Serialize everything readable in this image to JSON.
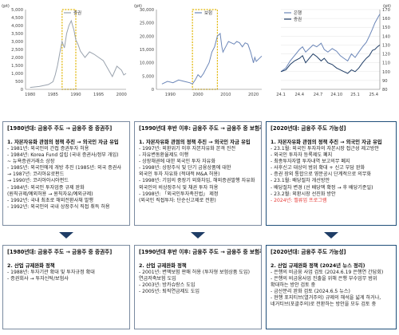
{
  "colors": {
    "series1": "#9aa3ae",
    "series_bank": "#6b86b8",
    "series_stock": "#1f3d66",
    "highlight": "#e0b400",
    "red": "#e53935"
  },
  "chart_data": [
    {
      "type": "line",
      "unit": "(pt)",
      "legend": [
        "증권"
      ],
      "x_ticks": [
        "1980",
        "1985",
        "1990",
        "1995",
        "2000"
      ],
      "y_ticks": [
        "0",
        "500",
        "1,000",
        "1,500",
        "2,000",
        "2,500",
        "3,000",
        "3,500",
        "4,000",
        "4,500",
        "5,000"
      ],
      "xlim": [
        1979,
        2001
      ],
      "ylim": [
        0,
        5000
      ],
      "highlight_x": [
        1987,
        1990
      ],
      "series": [
        {
          "values": [
            [
              1980,
              120
            ],
            [
              1982,
              180
            ],
            [
              1984,
              300
            ],
            [
              1985,
              480
            ],
            [
              1985.5,
              900
            ],
            [
              1986,
              1500
            ],
            [
              1986.5,
              2300
            ],
            [
              1987,
              3000
            ],
            [
              1987.5,
              2600
            ],
            [
              1988,
              3500
            ],
            [
              1988.5,
              4000
            ],
            [
              1989,
              4300
            ],
            [
              1989.3,
              4000
            ],
            [
              1989.6,
              3700
            ],
            [
              1990,
              3100
            ],
            [
              1990.5,
              2800
            ],
            [
              1991,
              2400
            ],
            [
              1992,
              2000
            ],
            [
              1993,
              2350
            ],
            [
              1994,
              2200
            ],
            [
              1995,
              2000
            ],
            [
              1996,
              1800
            ],
            [
              1997,
              1300
            ],
            [
              1998,
              800
            ],
            [
              1999,
              1450
            ],
            [
              2000,
              1200
            ],
            [
              2000.5,
              900
            ],
            [
              2001,
              1000
            ]
          ]
        }
      ]
    },
    {
      "type": "line",
      "unit": "(pt)",
      "legend": [
        "보험"
      ],
      "x_ticks": [
        "1990",
        "2000",
        "2010",
        "2020"
      ],
      "y_ticks": [
        "0",
        "5,000",
        "10,000",
        "15,000",
        "20,000",
        "25,000",
        "30,000"
      ],
      "xlim": [
        1985,
        2023
      ],
      "ylim": [
        0,
        30000
      ],
      "highlight_x": [
        1998,
        2007
      ],
      "series": [
        {
          "values": [
            [
              1987,
              2000
            ],
            [
              1989,
              3000
            ],
            [
              1991,
              2500
            ],
            [
              1993,
              3500
            ],
            [
              1995,
              3000
            ],
            [
              1997,
              2500
            ],
            [
              1998,
              2000
            ],
            [
              1999,
              3500
            ],
            [
              2000,
              5500
            ],
            [
              2001,
              4500
            ],
            [
              2002,
              6000
            ],
            [
              2003,
              8000
            ],
            [
              2004,
              10000
            ],
            [
              2005,
              14000
            ],
            [
              2006,
              16000
            ],
            [
              2007,
              20000
            ],
            [
              2008,
              21000
            ],
            [
              2008.6,
              16000
            ],
            [
              2009,
              14000
            ],
            [
              2010,
              16000
            ],
            [
              2011,
              18000
            ],
            [
              2012,
              17500
            ],
            [
              2013,
              17000
            ],
            [
              2014,
              18000
            ],
            [
              2015,
              17500
            ],
            [
              2016,
              16000
            ],
            [
              2017,
              17500
            ],
            [
              2018,
              17000
            ],
            [
              2019,
              14000
            ],
            [
              2020,
              10000
            ],
            [
              2020.5,
              12000
            ],
            [
              2021,
              10500
            ],
            [
              2022,
              11500
            ],
            [
              2023,
              12500
            ]
          ]
        }
      ]
    },
    {
      "type": "line",
      "unit": "(pt)",
      "legend": [
        "은행",
        "증권"
      ],
      "x_ticks": [
        "24.1",
        "24.4",
        "24.7",
        "24.10",
        "25.1",
        "25.4"
      ],
      "y_ticks": [
        "80",
        "90",
        "100",
        "110",
        "120",
        "130",
        "140",
        "150",
        "160",
        "170"
      ],
      "xlim": [
        0,
        16
      ],
      "ylim": [
        80,
        170
      ],
      "series": [
        {
          "name": "은행",
          "values": [
            [
              0,
              100
            ],
            [
              0.8,
              104
            ],
            [
              1.5,
              112
            ],
            [
              2.2,
              118
            ],
            [
              3,
              125
            ],
            [
              3.5,
              128
            ],
            [
              4,
              122
            ],
            [
              4.6,
              126
            ],
            [
              5.2,
              130
            ],
            [
              5.8,
              128
            ],
            [
              6.5,
              132
            ],
            [
              7,
              125
            ],
            [
              7.6,
              122
            ],
            [
              8.3,
              126
            ],
            [
              9,
              123
            ],
            [
              9.6,
              118
            ],
            [
              10.2,
              115
            ],
            [
              10.8,
              112
            ],
            [
              11.4,
              120
            ],
            [
              12,
              116
            ],
            [
              12.6,
              122
            ],
            [
              13.2,
              128
            ],
            [
              13.8,
              133
            ],
            [
              14.3,
              140
            ],
            [
              14.8,
              148
            ],
            [
              15.2,
              155
            ],
            [
              15.6,
              160
            ],
            [
              16,
              165
            ]
          ]
        },
        {
          "name": "증권",
          "values": [
            [
              0,
              100
            ],
            [
              0.8,
              102
            ],
            [
              1.5,
              108
            ],
            [
              2.2,
              112
            ],
            [
              3,
              115
            ],
            [
              3.5,
              118
            ],
            [
              4,
              110
            ],
            [
              4.6,
              115
            ],
            [
              5.2,
              120
            ],
            [
              5.8,
              117
            ],
            [
              6.5,
              112
            ],
            [
              7,
              115
            ],
            [
              7.6,
              110
            ],
            [
              8.3,
              108
            ],
            [
              9,
              104
            ],
            [
              9.6,
              102
            ],
            [
              10.2,
              100
            ],
            [
              10.8,
              98
            ],
            [
              11.4,
              102
            ],
            [
              12,
              100
            ],
            [
              12.6,
              104
            ],
            [
              13.2,
              110
            ],
            [
              13.8,
              115
            ],
            [
              14.3,
              118
            ],
            [
              14.8,
              124
            ],
            [
              15.2,
              125
            ],
            [
              15.6,
              128
            ],
            [
              16,
              130
            ]
          ]
        }
      ]
    }
  ],
  "columns": [
    {
      "box1": {
        "title": "[1980년대: 금융주 주도 → 금융주 중 증권주]",
        "subtitle": "1. 자본자유화 관점의 정책 추진 → 외국인 자금 유입",
        "lines": [
          "- 1981년: 외국인의 간접 증권투자 허용",
          "- 1984년: Korea Fund 설립 (국내 증권사/정부 개입)",
          "   ~ 뉴욕증권거래소 상장",
          "- 1985년: 외국인에게 개방 추진 (1985년: 외국 증권사",
          "   → 1987년: 코리아유로펀드",
          "   → 1990년: 코리아아시아펀드",
          "- 1984년: 외국인 투자업종 규제 완화",
          "   (원칙규제/예외허용 → 원칙자유/예외규제)",
          "- 1992년: 국내 최초로 해외전환사채 발행",
          "- 1992년: 외국인의 국내 상장주식 직접 취득 허용"
        ],
        "hi_lines": [
          3
        ]
      },
      "box2": {
        "title": "[1980년대: 금융주 주도 → 금융주 중 증권주]",
        "subtitle": "2. 산업 규제완화 정책",
        "lines": [
          "- 1988년: 투자기관 확대 및 투자규정 확대",
          "   - 증권회사 → 투자신탁/보험사"
        ]
      }
    },
    {
      "box1": {
        "title": "[1990년대 후반 이후: 금융주 주도 → 금융주 중 보험주]",
        "subtitle": "1. 자본자유화 관점의 정책 추진 → 외국인 자금 유입",
        "lines": [
          "- 1997년: 외환위기 이후 자본자유화 본격 진전",
          "   - 자유변동환율제도 이행",
          "   - 상장채권에 대한 외국인 투자 자유화",
          "- 1998년: 상장주식 및 단기 금융상품에 대한",
          "   외국인 투자 자유화 (적대적 M&A 허용)",
          "- 1998년: 기업의 중장기 외화차입, 해외증권발행 자유화",
          "   외국인의 비상장주식 및 채권 투자 허용",
          "- 1998년: 「외국인투자촉진법」 제정",
          "   (외국인 직접투자: 단순신고제로 전환)"
        ]
      },
      "box2": {
        "title": "[1990년대 후반 이후: 금융주 주도 → 금융주 중 보험주]",
        "subtitle": "2. 산업 규제완화 정책",
        "lines": [
          "- 2001년: 변액보험 판매 허용 (투자형 보험상품 도입)",
          "   연금저축보험 도입",
          "- 2003년: 방카슈랑스 도입",
          "- 2005년: 퇴직연금제도 도입"
        ]
      }
    },
    {
      "box1": {
        "title": "[2020년대: 금융주 주도 가능성]",
        "subtitle": "1. 자본자유화 관점의 정책 추진 → 외국인 자금 유입",
        "lines": [
          "- 23.1월: 외국인 투자자의 자본시장 접근성 제고방안",
          "   - 외국인 투자자 등록제도 폐지",
          "   - 최종투자자별 투자내역 보고의무 폐지",
          "   - 사후신고 대상의 범위 확대 + 신고 부담 완화",
          "   - 증권 장외 통합으로 영문공시 단계적으로 의무화",
          "- 23.1월: 배당절차 개선방안",
          "   - 배당절차 변경 (선 배당액 확정 → 후 배당기준일)",
          "- 23.2월: 외환시장 선진화 방안",
          "- 2024년: 밸류업 프로그램"
        ],
        "red_index": 8
      },
      "box2": {
        "title": "[2020년대: 금융주 주도 가능성]",
        "subtitle": "2. 산업 규제완화 정책 (2024년 뉴스 정리)",
        "lines": [
          "- 은행의 비금융 사업 검토 (2024.6.19 은행연 간담회)",
          "   - 은행의 비금융사업 진출을 위해 은행 부수업무 범위",
          "     확대하는 방안 검토 중",
          "- 금산분리 완화 검토 (2024.6.5 뉴스)",
          "   - 현행 포지티브(열거주의) 규제의 해석을 넓게 하거나,",
          "     네거티브(포괄주의)로 전환하는 방안을 모두 검토 중"
        ]
      }
    }
  ]
}
